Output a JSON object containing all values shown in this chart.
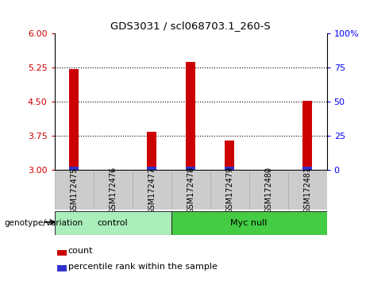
{
  "title": "GDS3031 / scl068703.1_260-S",
  "samples": [
    "GSM172475",
    "GSM172476",
    "GSM172477",
    "GSM172478",
    "GSM172479",
    "GSM172480",
    "GSM172481"
  ],
  "count_values": [
    5.22,
    3.0,
    3.85,
    5.38,
    3.65,
    3.0,
    4.52
  ],
  "percentile_flags": [
    1,
    0,
    1,
    1,
    1,
    0,
    1
  ],
  "bar_base": 3.0,
  "ylim": [
    3.0,
    6.0
  ],
  "yticks": [
    3.0,
    3.75,
    4.5,
    5.25,
    6.0
  ],
  "right_yticks": [
    0,
    25,
    50,
    75,
    100
  ],
  "right_ylim": [
    0,
    100
  ],
  "count_color": "#cc0000",
  "percentile_color": "#3333cc",
  "group_control": [
    0,
    1,
    2
  ],
  "group_myc_null": [
    3,
    4,
    5,
    6
  ],
  "group_labels": [
    "control",
    "Myc null"
  ],
  "group_bg_light": "#aaeebb",
  "group_bg_dark": "#44cc44",
  "label_area_bg": "#cccccc",
  "genotype_label": "genotype/variation",
  "legend_count": "count",
  "legend_percentile": "percentile rank within the sample",
  "bar_width": 0.25,
  "percentile_bar_height": 0.08
}
